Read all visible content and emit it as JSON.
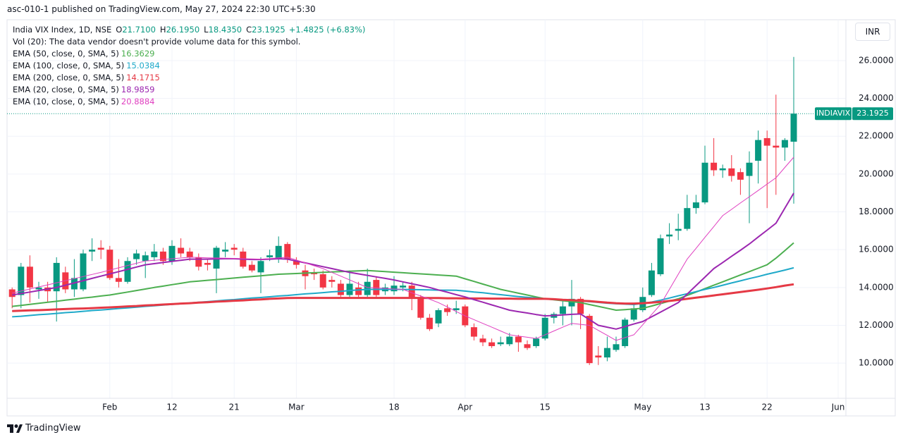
{
  "header": {
    "attribution": "asc-010-1 published on TradingView.com, May 27, 2024 22:30 UTC+5:30"
  },
  "footer": {
    "branding": "TradingView"
  },
  "chart_data": {
    "type": "candlestick",
    "title": "India VIX Index, 1D, NSE",
    "ohlc_legend": [
      {
        "key": "O",
        "value": "21.7100"
      },
      {
        "key": "H",
        "value": "26.1950"
      },
      {
        "key": "L",
        "value": "18.4350"
      },
      {
        "key": "C",
        "value": "23.1925"
      }
    ],
    "change": "+1.4825 (+6.83%)",
    "volume_note": "Vol (20): The data vendor doesn't provide volume data for this symbol.",
    "currency": "INR",
    "price_tag": {
      "symbol": "INDIAVIX",
      "label": "23.1925"
    },
    "up_color": "#089981",
    "down_color": "#f23645",
    "grid": true,
    "ylim": [
      8.14,
      28.16
    ],
    "yticks": [
      {
        "value": 10,
        "label": "10.0000"
      },
      {
        "value": 12,
        "label": "12.0000"
      },
      {
        "value": 14,
        "label": "14.0000"
      },
      {
        "value": 16,
        "label": "16.0000"
      },
      {
        "value": 18,
        "label": "18.0000"
      },
      {
        "value": 20,
        "label": "20.0000"
      },
      {
        "value": 22,
        "label": "22.0000"
      },
      {
        "value": 24,
        "label": "24.0000"
      },
      {
        "value": 26,
        "label": "26.0000"
      }
    ],
    "categories": [
      null,
      null,
      null,
      null,
      null,
      null,
      null,
      null,
      null,
      null,
      null,
      "Feb",
      null,
      null,
      null,
      null,
      null,
      null,
      "12",
      null,
      null,
      null,
      null,
      null,
      null,
      "21",
      null,
      null,
      null,
      null,
      null,
      null,
      "Mar",
      null,
      null,
      null,
      null,
      null,
      null,
      null,
      null,
      null,
      null,
      "18",
      null,
      null,
      null,
      null,
      null,
      null,
      null,
      "Apr",
      null,
      null,
      null,
      null,
      null,
      null,
      null,
      null,
      "15",
      null,
      null,
      null,
      null,
      null,
      null,
      null,
      null,
      null,
      null,
      "May",
      null,
      null,
      null,
      null,
      null,
      null,
      "13",
      null,
      null,
      null,
      null,
      null,
      null,
      "22",
      null,
      null,
      null,
      null,
      null,
      null,
      null,
      "Jun"
    ],
    "open": [
      13.9,
      13.6,
      15.1,
      13.9,
      14.0,
      13.8,
      14.8,
      13.9,
      13.9,
      15.9,
      16.1,
      16.0,
      14.5,
      14.3,
      15.5,
      15.4,
      15.6,
      15.9,
      15.4,
      16.1,
      15.9,
      15.6,
      15.3,
      15.0,
      15.9,
      16.1,
      15.9,
      15.2,
      14.8,
      15.6,
      15.5,
      16.3,
      15.4,
      14.9,
      14.8,
      14.7,
      14.4,
      14.2,
      13.6,
      14.0,
      13.6,
      14.4,
      13.8,
      13.8,
      14.0,
      14.1,
      13.4,
      12.4,
      12.1,
      12.9,
      12.8,
      13.0,
      11.9,
      11.3,
      11.1,
      11.0,
      11.0,
      11.4,
      11.0,
      10.9,
      11.3,
      12.4,
      12.6,
      13.0,
      13.4,
      12.5,
      10.4,
      10.3,
      10.7,
      10.9,
      12.3,
      12.8,
      13.6,
      14.7,
      16.7,
      17.0,
      17.1,
      18.2,
      18.5,
      20.6,
      20.2,
      20.3,
      20.1,
      19.9,
      20.7,
      21.9,
      21.5,
      21.4,
      21.71,
      null,
      null,
      null,
      null,
      null
    ],
    "high": [
      14.0,
      15.3,
      15.7,
      14.3,
      14.3,
      15.6,
      15.1,
      15.5,
      16.0,
      16.6,
      16.5,
      16.2,
      15.5,
      15.6,
      16.0,
      15.9,
      16.3,
      16.1,
      16.5,
      16.6,
      16.1,
      15.8,
      15.5,
      16.2,
      16.4,
      16.3,
      16.1,
      15.4,
      15.6,
      16.0,
      16.7,
      16.4,
      15.6,
      15.2,
      15.0,
      14.9,
      14.6,
      14.4,
      14.9,
      14.3,
      15.0,
      14.6,
      14.2,
      14.6,
      14.3,
      14.3,
      13.6,
      12.6,
      12.9,
      13.1,
      13.3,
      13.1,
      12.1,
      11.5,
      11.3,
      11.4,
      11.6,
      11.5,
      11.2,
      11.4,
      12.6,
      12.7,
      13.3,
      14.4,
      13.5,
      12.6,
      10.9,
      11.4,
      11.4,
      12.4,
      13.1,
      14.0,
      15.3,
      16.8,
      17.4,
      17.9,
      18.9,
      18.9,
      21.5,
      21.9,
      20.5,
      21.0,
      20.3,
      21.2,
      22.3,
      22.3,
      24.2,
      21.9,
      26.195,
      null,
      null,
      null,
      null,
      null
    ],
    "low": [
      12.9,
      12.9,
      13.2,
      13.4,
      13.2,
      12.2,
      13.7,
      13.5,
      13.8,
      15.4,
      15.5,
      14.4,
      14.0,
      14.2,
      15.2,
      14.5,
      15.4,
      15.2,
      15.2,
      15.6,
      15.4,
      14.9,
      14.9,
      13.7,
      15.6,
      15.7,
      15.0,
      14.8,
      13.7,
      15.4,
      15.3,
      15.3,
      15.0,
      13.9,
      14.4,
      13.9,
      14.0,
      13.5,
      13.5,
      13.5,
      13.5,
      13.5,
      13.6,
      13.6,
      13.8,
      12.8,
      12.3,
      11.7,
      11.9,
      12.5,
      12.6,
      11.9,
      11.2,
      10.9,
      10.8,
      10.9,
      10.9,
      10.6,
      10.7,
      10.8,
      11.2,
      12.1,
      12.0,
      12.0,
      11.8,
      9.9,
      9.9,
      10.1,
      10.6,
      10.8,
      12.2,
      12.7,
      13.5,
      14.6,
      16.3,
      16.5,
      17.0,
      17.9,
      18.4,
      19.9,
      19.8,
      19.6,
      18.9,
      17.4,
      19.5,
      18.2,
      18.9,
      20.7,
      18.435,
      null,
      null,
      null,
      null,
      null
    ],
    "close": [
      13.5,
      15.1,
      14.0,
      14.0,
      13.8,
      15.3,
      13.9,
      14.5,
      15.8,
      16.0,
      16.0,
      14.5,
      14.3,
      15.4,
      15.8,
      15.7,
      15.9,
      15.4,
      16.2,
      15.8,
      15.6,
      15.1,
      15.2,
      16.1,
      16.0,
      16.0,
      15.1,
      14.9,
      15.4,
      15.7,
      16.2,
      15.5,
      15.2,
      14.6,
      14.7,
      14.0,
      14.3,
      13.6,
      14.2,
      13.6,
      14.3,
      13.6,
      14.0,
      14.1,
      14.1,
      13.5,
      12.4,
      11.8,
      12.8,
      12.7,
      12.9,
      12.0,
      11.4,
      11.1,
      10.9,
      11.1,
      11.4,
      11.1,
      10.8,
      11.3,
      12.4,
      12.6,
      13.0,
      13.4,
      12.6,
      10.0,
      10.3,
      10.8,
      11.0,
      12.3,
      12.9,
      13.5,
      14.9,
      16.6,
      16.8,
      17.1,
      18.2,
      18.5,
      20.6,
      20.2,
      20.3,
      19.9,
      19.7,
      20.6,
      21.8,
      21.5,
      21.4,
      21.8,
      23.1925,
      null,
      null,
      null,
      null,
      null
    ],
    "indicators": [
      {
        "name": "EMA (50, close, 0, SMA, 5)",
        "color": "#4caf50",
        "width": 2,
        "last_label": "16.3629",
        "values": [
          13.0,
          13.05,
          13.11,
          13.16,
          13.22,
          13.27,
          13.33,
          13.38,
          13.44,
          13.49,
          13.55,
          13.6,
          13.68,
          13.76,
          13.84,
          13.92,
          14.0,
          14.07,
          14.15,
          14.22,
          14.3,
          14.34,
          14.38,
          14.42,
          14.46,
          14.5,
          14.54,
          14.58,
          14.62,
          14.66,
          14.7,
          14.72,
          14.74,
          14.76,
          14.78,
          14.8,
          14.82,
          14.84,
          14.86,
          14.88,
          14.9,
          14.87,
          14.84,
          14.81,
          14.78,
          14.75,
          14.72,
          14.69,
          14.66,
          14.63,
          14.6,
          14.46,
          14.32,
          14.18,
          14.04,
          13.9,
          13.8,
          13.7,
          13.6,
          13.5,
          13.4,
          13.35,
          13.3,
          13.25,
          13.2,
          13.1,
          13.0,
          12.9,
          12.8,
          12.83,
          12.86,
          12.9,
          13.02,
          13.15,
          13.28,
          13.4,
          13.58,
          13.76,
          13.94,
          14.12,
          14.3,
          14.48,
          14.66,
          14.84,
          15.02,
          15.2,
          15.55,
          15.95,
          16.36,
          null,
          null,
          null,
          null,
          null
        ]
      },
      {
        "name": "EMA (100, close, 0, SMA, 5)",
        "color": "#1fa9c9",
        "width": 2,
        "last_label": "15.0384",
        "values": [
          12.45,
          12.48,
          12.52,
          12.56,
          12.59,
          12.63,
          12.67,
          12.7,
          12.74,
          12.78,
          12.81,
          12.85,
          12.89,
          12.92,
          12.96,
          13.0,
          13.03,
          13.07,
          13.11,
          13.14,
          13.18,
          13.22,
          13.25,
          13.29,
          13.33,
          13.36,
          13.4,
          13.44,
          13.47,
          13.51,
          13.55,
          13.58,
          13.62,
          13.66,
          13.69,
          13.73,
          13.77,
          13.8,
          13.84,
          13.87,
          13.9,
          13.9,
          13.9,
          13.9,
          13.9,
          13.89,
          13.88,
          13.87,
          13.86,
          13.86,
          13.85,
          13.81,
          13.76,
          13.72,
          13.67,
          13.62,
          13.57,
          13.52,
          13.48,
          13.44,
          13.4,
          13.37,
          13.34,
          13.31,
          13.28,
          13.25,
          13.21,
          13.17,
          13.14,
          13.12,
          13.1,
          13.16,
          13.23,
          13.33,
          13.44,
          13.56,
          13.67,
          13.78,
          13.9,
          14.0,
          14.12,
          14.24,
          14.35,
          14.47,
          14.58,
          14.7,
          14.81,
          14.92,
          15.04,
          null,
          null,
          null,
          null,
          null
        ]
      },
      {
        "name": "EMA (200, close, 0, SMA, 5)",
        "color": "#e53945",
        "width": 3,
        "last_label": "14.1715",
        "values": [
          12.75,
          12.77,
          12.79,
          12.8,
          12.82,
          12.84,
          12.86,
          12.88,
          12.89,
          12.91,
          12.93,
          12.95,
          12.97,
          13.0,
          13.02,
          13.05,
          13.07,
          13.1,
          13.12,
          13.15,
          13.17,
          13.2,
          13.22,
          13.25,
          13.27,
          13.3,
          13.32,
          13.35,
          13.37,
          13.4,
          13.42,
          13.44,
          13.45,
          13.45,
          13.45,
          13.45,
          13.45,
          13.45,
          13.45,
          13.45,
          13.45,
          13.45,
          13.45,
          13.45,
          13.45,
          13.45,
          13.45,
          13.44,
          13.44,
          13.43,
          13.43,
          13.42,
          13.42,
          13.42,
          13.41,
          13.41,
          13.41,
          13.4,
          13.4,
          13.4,
          13.4,
          13.38,
          13.35,
          13.33,
          13.3,
          13.28,
          13.24,
          13.2,
          13.17,
          13.15,
          13.15,
          13.17,
          13.2,
          13.24,
          13.29,
          13.34,
          13.4,
          13.46,
          13.52,
          13.58,
          13.64,
          13.7,
          13.76,
          13.82,
          13.88,
          13.95,
          14.02,
          14.1,
          14.17,
          null,
          null,
          null,
          null,
          null
        ]
      },
      {
        "name": "EMA (20, close, 0, SMA, 5)",
        "color": "#9c27b0",
        "width": 2,
        "last_label": "18.9859",
        "values": [
          13.6,
          13.68,
          13.76,
          13.84,
          13.92,
          14.0,
          14.12,
          14.24,
          14.36,
          14.48,
          14.6,
          14.72,
          14.84,
          14.96,
          15.08,
          15.2,
          15.26,
          15.32,
          15.38,
          15.44,
          15.5,
          15.5,
          15.5,
          15.51,
          15.52,
          15.52,
          15.5,
          15.48,
          15.48,
          15.5,
          15.52,
          15.5,
          15.4,
          15.3,
          15.2,
          15.1,
          15.0,
          14.9,
          14.8,
          14.72,
          14.64,
          14.56,
          14.48,
          14.4,
          14.3,
          14.2,
          14.1,
          14.0,
          13.87,
          13.75,
          13.62,
          13.5,
          13.36,
          13.22,
          13.08,
          12.94,
          12.8,
          12.72,
          12.65,
          12.57,
          12.5,
          12.52,
          12.55,
          12.58,
          12.6,
          12.3,
          12.0,
          11.9,
          11.8,
          11.93,
          12.07,
          12.2,
          12.45,
          12.7,
          12.95,
          13.2,
          13.65,
          14.1,
          14.55,
          15.0,
          15.32,
          15.65,
          15.97,
          16.3,
          16.67,
          17.03,
          17.4,
          18.2,
          18.99,
          null,
          null,
          null,
          null,
          null
        ]
      },
      {
        "name": "EMA (10, close, 0, SMA, 5)",
        "color": "#e040c0",
        "width": 1,
        "last_label": "20.8884",
        "values": [
          13.7,
          13.81,
          13.92,
          14.03,
          14.14,
          14.25,
          14.36,
          14.47,
          14.58,
          14.69,
          14.8,
          14.92,
          15.04,
          15.16,
          15.28,
          15.4,
          15.44,
          15.48,
          15.52,
          15.56,
          15.6,
          15.59,
          15.57,
          15.56,
          15.55,
          15.54,
          15.52,
          15.51,
          15.5,
          15.53,
          15.57,
          15.6,
          15.45,
          15.3,
          15.15,
          15.0,
          14.8,
          14.6,
          14.4,
          14.2,
          14.0,
          13.98,
          13.95,
          13.92,
          13.9,
          13.72,
          13.55,
          13.38,
          13.2,
          12.97,
          12.73,
          12.5,
          12.3,
          12.1,
          11.9,
          11.7,
          11.5,
          11.43,
          11.37,
          11.3,
          11.5,
          11.7,
          11.9,
          12.1,
          12.05,
          12.0,
          11.73,
          11.47,
          11.2,
          11.35,
          11.5,
          12.03,
          12.57,
          13.1,
          13.9,
          14.7,
          15.5,
          16.07,
          16.65,
          17.22,
          17.8,
          18.13,
          18.47,
          18.8,
          19.13,
          19.47,
          19.8,
          20.35,
          20.8884,
          null,
          null,
          null,
          null,
          null
        ]
      }
    ]
  }
}
